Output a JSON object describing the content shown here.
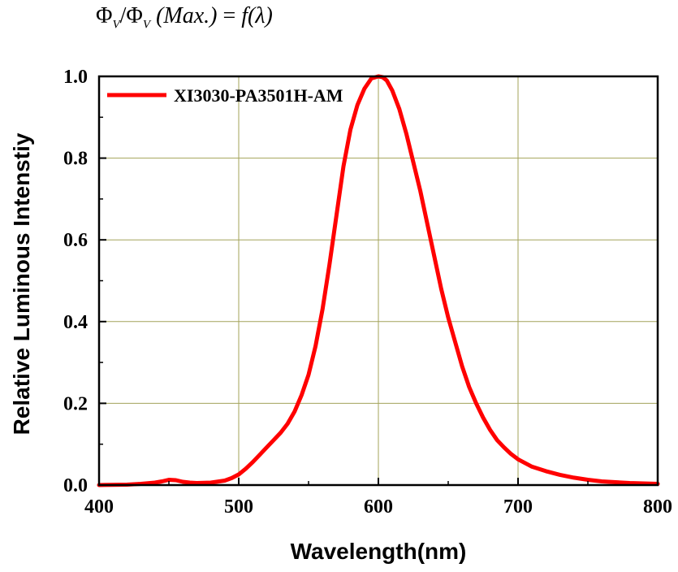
{
  "formula": {
    "phi": "Φ",
    "sub": "V",
    "slash": "/",
    "max": "(Max.)",
    "equals": " = ",
    "f": "f",
    "lambda": "(λ)"
  },
  "chart_data": {
    "type": "line",
    "xlabel": "Wavelength(nm)",
    "ylabel": "Relative Luminous Intenstiy",
    "xlim": [
      400,
      800
    ],
    "ylim": [
      0,
      1.0
    ],
    "xticks": [
      400,
      500,
      600,
      700,
      800
    ],
    "xtick_labels": [
      "400",
      "500",
      "600",
      "700",
      "800"
    ],
    "yticks": [
      0.0,
      0.2,
      0.4,
      0.6,
      0.8,
      1.0
    ],
    "ytick_labels": [
      "0.0",
      "0.2",
      "0.4",
      "0.6",
      "0.8",
      "1.0"
    ],
    "grid": true,
    "grid_color": "#a3a35a",
    "legend": "top-left",
    "series": [
      {
        "name": "XI3030-PA3501H-AM",
        "color": "#ff0000",
        "x": [
          400,
          420,
          430,
          440,
          445,
          450,
          455,
          460,
          465,
          470,
          480,
          490,
          495,
          500,
          505,
          510,
          515,
          520,
          525,
          530,
          535,
          540,
          545,
          550,
          555,
          560,
          565,
          570,
          575,
          580,
          585,
          590,
          595,
          600,
          603,
          606,
          610,
          615,
          620,
          625,
          630,
          635,
          640,
          645,
          650,
          655,
          660,
          665,
          670,
          675,
          680,
          685,
          690,
          695,
          700,
          710,
          720,
          730,
          740,
          750,
          760,
          770,
          780,
          790,
          800
        ],
        "y": [
          0.0,
          0.001,
          0.003,
          0.006,
          0.009,
          0.013,
          0.012,
          0.008,
          0.006,
          0.005,
          0.006,
          0.011,
          0.017,
          0.026,
          0.04,
          0.056,
          0.074,
          0.092,
          0.11,
          0.128,
          0.15,
          0.18,
          0.22,
          0.27,
          0.34,
          0.43,
          0.54,
          0.66,
          0.78,
          0.87,
          0.93,
          0.97,
          0.995,
          1.0,
          0.998,
          0.99,
          0.965,
          0.92,
          0.86,
          0.79,
          0.72,
          0.64,
          0.56,
          0.48,
          0.41,
          0.35,
          0.29,
          0.24,
          0.2,
          0.165,
          0.135,
          0.11,
          0.092,
          0.076,
          0.063,
          0.045,
          0.034,
          0.025,
          0.018,
          0.013,
          0.009,
          0.007,
          0.005,
          0.004,
          0.003
        ]
      }
    ]
  }
}
